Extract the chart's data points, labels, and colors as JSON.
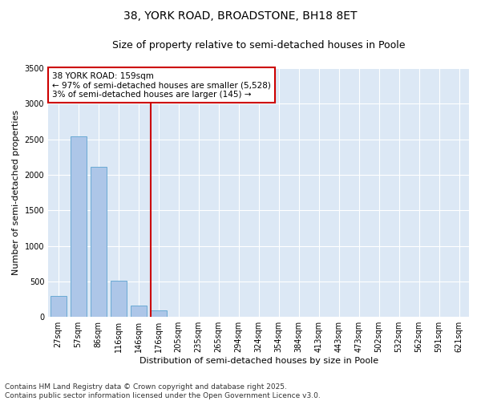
{
  "title_line1": "38, YORK ROAD, BROADSTONE, BH18 8ET",
  "title_line2": "Size of property relative to semi-detached houses in Poole",
  "xlabel": "Distribution of semi-detached houses by size in Poole",
  "ylabel": "Number of semi-detached properties",
  "footer_line1": "Contains HM Land Registry data © Crown copyright and database right 2025.",
  "footer_line2": "Contains public sector information licensed under the Open Government Licence v3.0.",
  "annotation_line1": "38 YORK ROAD: 159sqm",
  "annotation_line2": "← 97% of semi-detached houses are smaller (5,528)",
  "annotation_line3": "3% of semi-detached houses are larger (145) →",
  "bar_labels": [
    "27sqm",
    "57sqm",
    "86sqm",
    "116sqm",
    "146sqm",
    "176sqm",
    "205sqm",
    "235sqm",
    "265sqm",
    "294sqm",
    "324sqm",
    "354sqm",
    "384sqm",
    "413sqm",
    "443sqm",
    "473sqm",
    "502sqm",
    "532sqm",
    "562sqm",
    "591sqm",
    "621sqm"
  ],
  "bar_values": [
    300,
    2540,
    2110,
    510,
    160,
    90,
    0,
    0,
    0,
    0,
    0,
    0,
    0,
    0,
    0,
    0,
    0,
    0,
    0,
    0,
    0
  ],
  "n_bars": 21,
  "vline_bar_index": 5,
  "bar_color": "#adc6e8",
  "bar_edge_color": "#6aaad4",
  "vline_color": "#cc0000",
  "background_color": "#dce8f5",
  "ylim_max": 3500,
  "yticks": [
    0,
    500,
    1000,
    1500,
    2000,
    2500,
    3000,
    3500
  ],
  "grid_color": "#ffffff",
  "title_fontsize": 10,
  "subtitle_fontsize": 9,
  "axis_label_fontsize": 8,
  "tick_fontsize": 7,
  "annotation_fontsize": 7.5,
  "footer_fontsize": 6.5
}
